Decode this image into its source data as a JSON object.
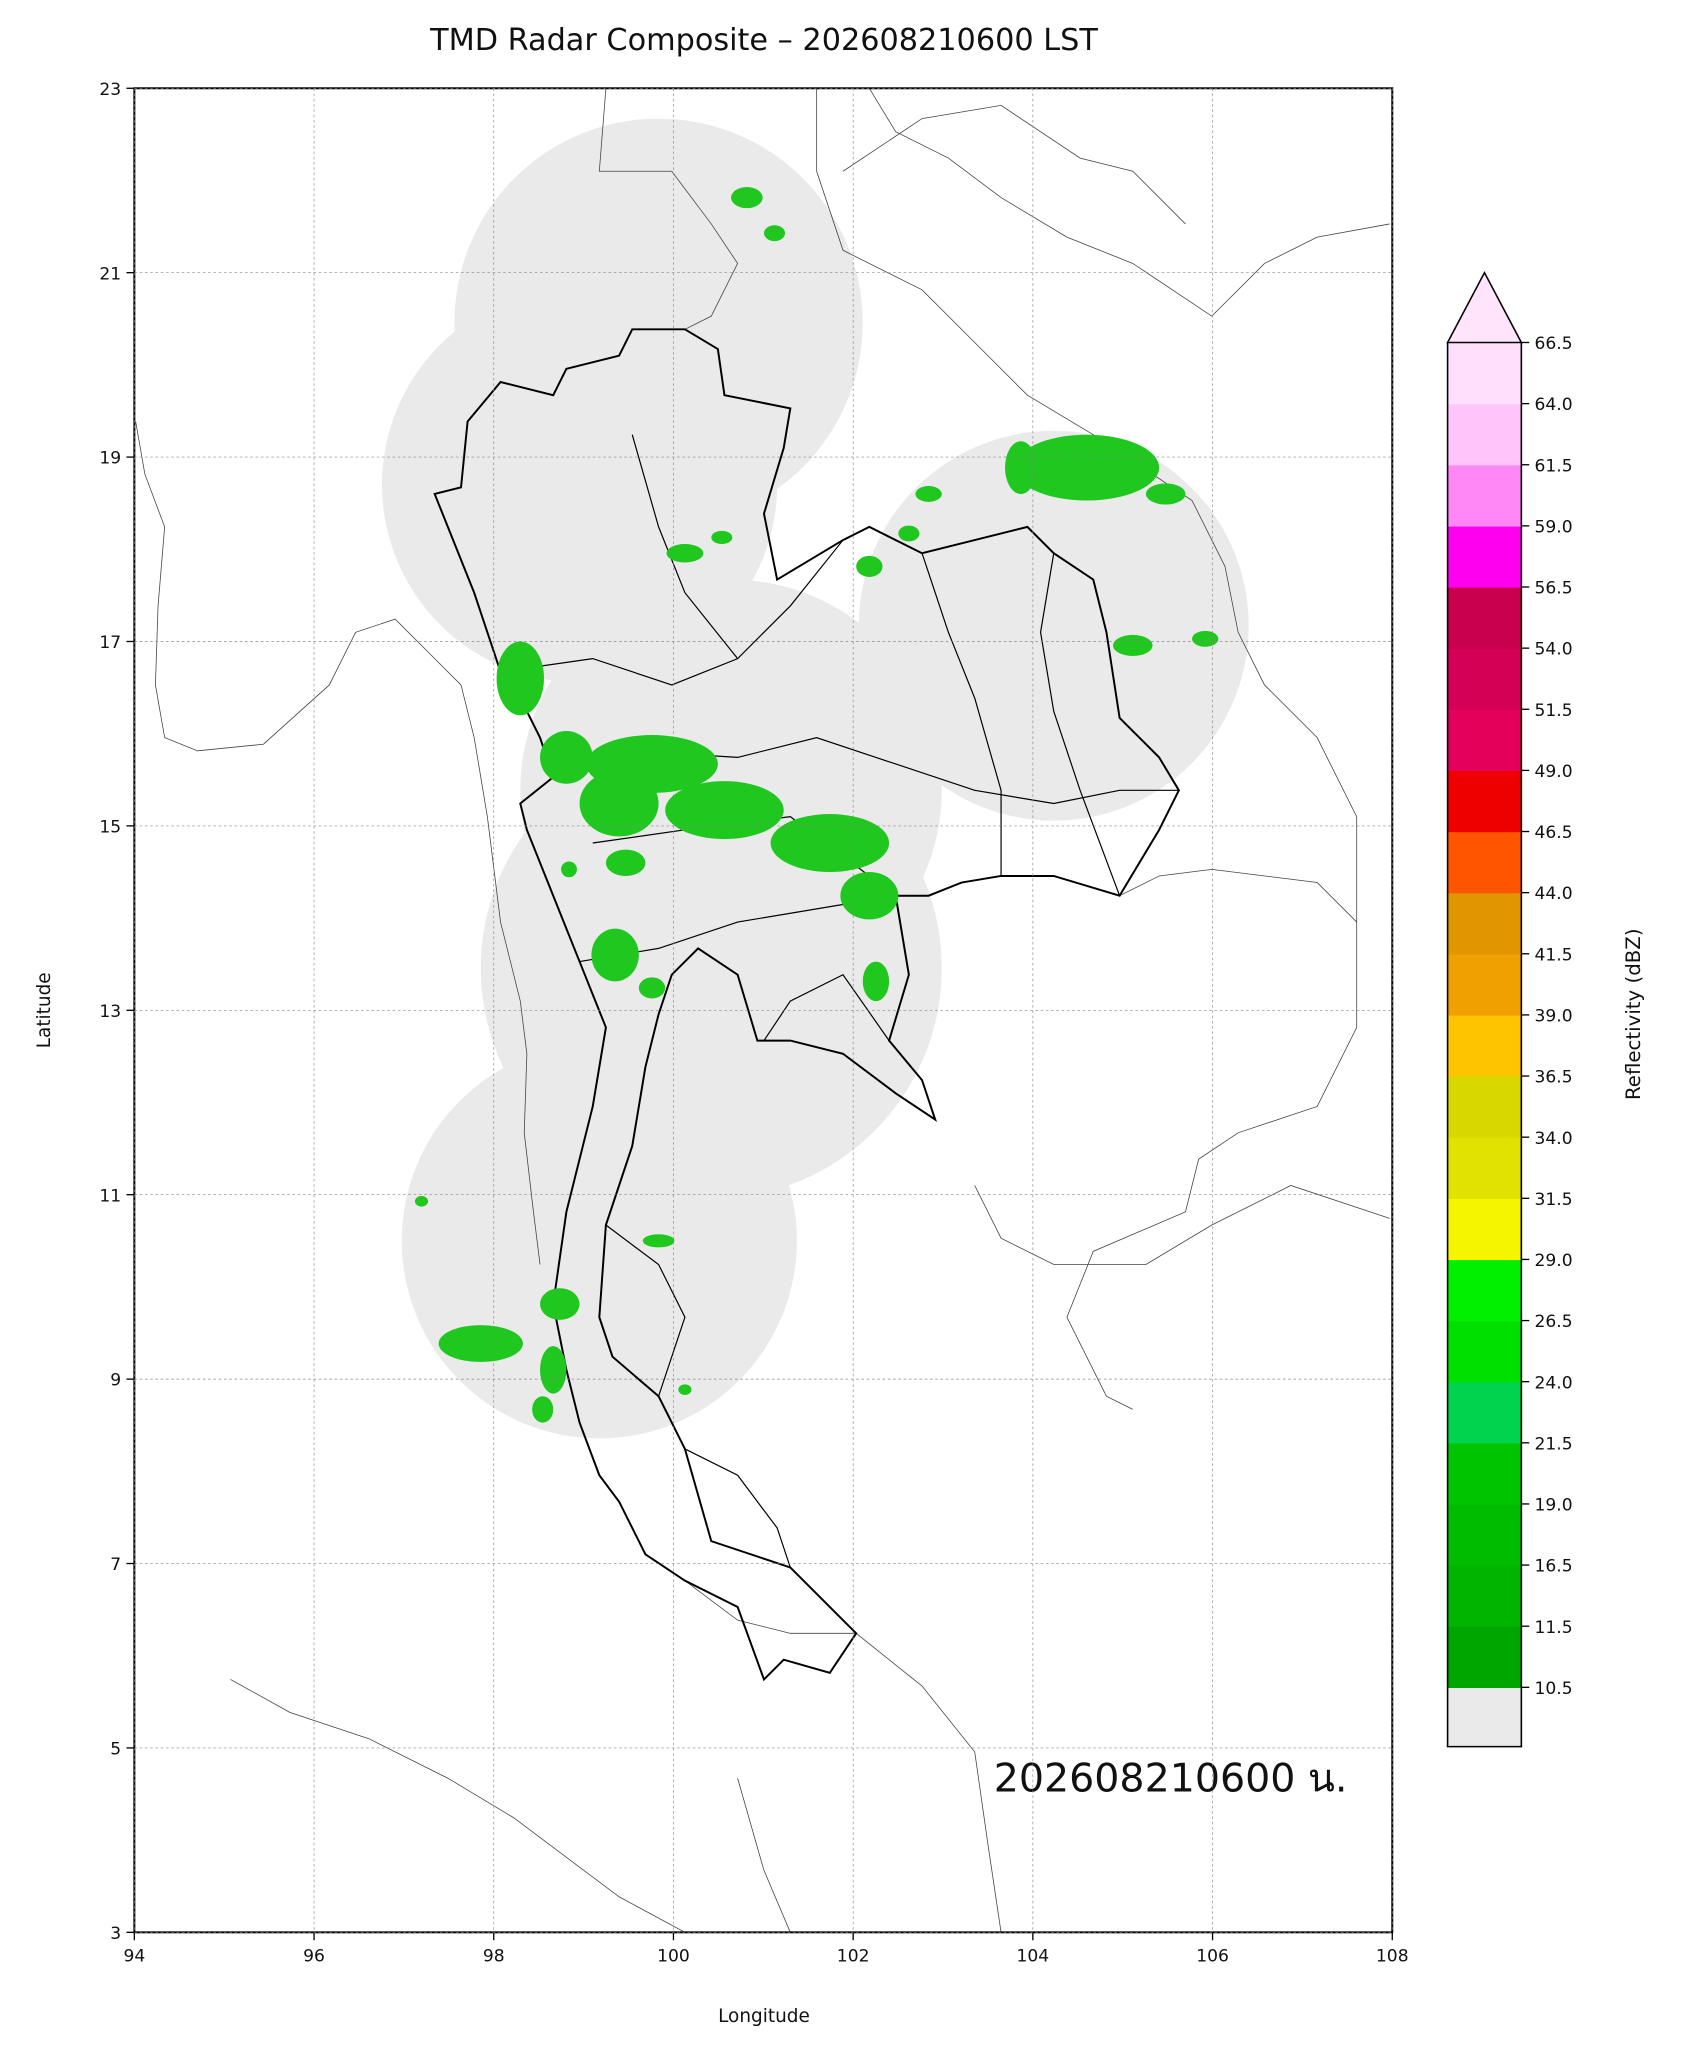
{
  "chart_data": {
    "type": "map",
    "title": "TMD Radar Composite – 202608210600 LST",
    "xlabel": "Longitude",
    "ylabel": "Latitude",
    "xlim": [
      94,
      108
    ],
    "ylim": [
      3,
      23
    ],
    "xticks": [
      94,
      96,
      98,
      100,
      102,
      104,
      106,
      108
    ],
    "yticks": [
      3,
      5,
      7,
      9,
      11,
      13,
      15,
      17,
      19,
      21,
      23
    ],
    "grid": true,
    "annotation": "202608210600 น.",
    "colorbar": {
      "label": "Reflectivity (dBZ)",
      "ticks": [
        10.5,
        11.5,
        16.5,
        {
          "value": 19,
          "label": "19.0"
        },
        21.5,
        {
          "value": 24,
          "label": "24.0"
        },
        26.5,
        {
          "value": 29,
          "label": "29.0"
        },
        31.5,
        {
          "value": 34,
          "label": "34.0"
        },
        36.5,
        {
          "value": 39,
          "label": "39.0"
        },
        41.5,
        {
          "value": 44,
          "label": "44.0"
        },
        46.5,
        {
          "value": 49,
          "label": "49.0"
        },
        51.5,
        {
          "value": 54,
          "label": "54.0"
        },
        56.5,
        {
          "value": 59,
          "label": "59.0"
        },
        61.5,
        {
          "value": 64,
          "label": "64.0"
        },
        66.5
      ],
      "colors": [
        "#00a600",
        "#00b400",
        "#00bc00",
        "#00c400",
        "#00d44c",
        "#00e000",
        "#00f000",
        "#f5f500",
        "#e2e200",
        "#d8d800",
        "#ffc400",
        "#f0a000",
        "#e09600",
        "#ff5500",
        "#ee0000",
        "#e4005a",
        "#d40056",
        "#c8004c",
        "#ff00ee",
        "#ff88f6",
        "#ffc4fa",
        "#ffe0fc"
      ],
      "under_color": "#eaeaea",
      "over_color": "#ffe4fc"
    }
  }
}
